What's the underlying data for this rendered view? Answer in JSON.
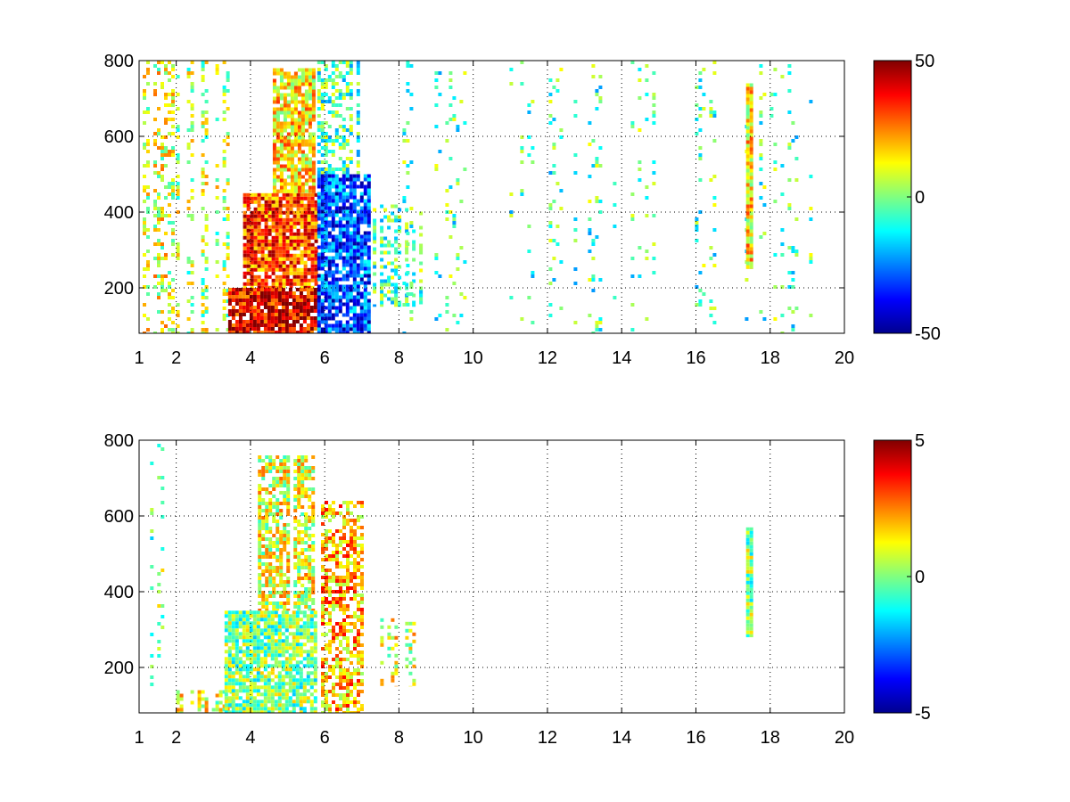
{
  "chart_data": [
    {
      "type": "heatmap",
      "title": "",
      "xlabel": "",
      "ylabel": "",
      "xlim": [
        1,
        20
      ],
      "ylim": [
        80,
        800
      ],
      "xticks": [
        1,
        2,
        4,
        6,
        8,
        10,
        12,
        14,
        16,
        18,
        20
      ],
      "xtick_labels": [
        "1",
        "2",
        "4",
        "6",
        "8",
        "10",
        "12",
        "14",
        "16",
        "18",
        "20"
      ],
      "yticks": [
        200,
        400,
        600,
        800
      ],
      "ytick_labels": [
        "200",
        "400",
        "600",
        "800"
      ],
      "grid": true,
      "colormap": "jet",
      "clim": [
        -50,
        50
      ],
      "colorbar_ticks": [
        50,
        0,
        -50
      ],
      "colorbar_tick_labels": [
        "50",
        "0",
        "-50"
      ],
      "regions": [
        {
          "x": [
            1.0,
            2.0
          ],
          "y": [
            80,
            800
          ],
          "value": 10,
          "density": 0.35,
          "note": "sparse yellow/green streaks"
        },
        {
          "x": [
            2.0,
            3.4
          ],
          "y": [
            80,
            800
          ],
          "value": 5,
          "density": 0.3
        },
        {
          "x": [
            3.4,
            5.8
          ],
          "y": [
            80,
            200
          ],
          "value": 40,
          "density": 0.9
        },
        {
          "x": [
            3.8,
            5.8
          ],
          "y": [
            200,
            450
          ],
          "value": 30,
          "density": 0.9
        },
        {
          "x": [
            4.6,
            5.8
          ],
          "y": [
            450,
            780
          ],
          "value": 15,
          "density": 0.85
        },
        {
          "x": [
            5.8,
            7.2
          ],
          "y": [
            80,
            500
          ],
          "value": -30,
          "density": 0.85
        },
        {
          "x": [
            5.8,
            7.2
          ],
          "y": [
            500,
            800
          ],
          "value": -5,
          "density": 0.5
        },
        {
          "x": [
            7.2,
            8.6
          ],
          "y": [
            150,
            420
          ],
          "value": -5,
          "density": 0.45
        },
        {
          "x": [
            8.0,
            20.0
          ],
          "y": [
            80,
            800
          ],
          "value": -5,
          "density": 0.12,
          "note": "scattered green/cyan vertical streaks"
        },
        {
          "x": [
            17.35,
            17.55
          ],
          "y": [
            250,
            740
          ],
          "value": 15,
          "density": 1.0,
          "note": "yellow vertical stripe"
        }
      ]
    },
    {
      "type": "heatmap",
      "title": "",
      "xlabel": "",
      "ylabel": "",
      "xlim": [
        1,
        20
      ],
      "ylim": [
        80,
        800
      ],
      "xticks": [
        1,
        2,
        4,
        6,
        8,
        10,
        12,
        14,
        16,
        18,
        20
      ],
      "xtick_labels": [
        "1",
        "2",
        "4",
        "6",
        "8",
        "10",
        "12",
        "14",
        "16",
        "18",
        "20"
      ],
      "yticks": [
        200,
        400,
        600,
        800
      ],
      "ytick_labels": [
        "200",
        "400",
        "600",
        "800"
      ],
      "grid": true,
      "colormap": "jet",
      "clim": [
        -5,
        5
      ],
      "colorbar_ticks": [
        5,
        0,
        -5
      ],
      "colorbar_tick_labels": [
        "5",
        "0",
        "-5"
      ],
      "regions": [
        {
          "x": [
            1.2,
            1.9
          ],
          "y": [
            150,
            800
          ],
          "value": 0,
          "density": 0.15,
          "note": "thin isolated vertical lines"
        },
        {
          "x": [
            2.0,
            3.5
          ],
          "y": [
            80,
            140
          ],
          "value": 1,
          "density": 0.5
        },
        {
          "x": [
            3.3,
            5.8
          ],
          "y": [
            80,
            350
          ],
          "value": 0,
          "density": 0.85
        },
        {
          "x": [
            4.2,
            5.8
          ],
          "y": [
            350,
            760
          ],
          "value": 1,
          "density": 0.7
        },
        {
          "x": [
            5.9,
            7.2
          ],
          "y": [
            80,
            640
          ],
          "value": 2,
          "density": 0.6
        },
        {
          "x": [
            7.4,
            8.5
          ],
          "y": [
            150,
            330
          ],
          "value": 1,
          "density": 0.35
        },
        {
          "x": [
            17.35,
            17.55
          ],
          "y": [
            280,
            570
          ],
          "value": 0,
          "density": 1.0,
          "note": "green vertical stripe"
        }
      ]
    }
  ]
}
